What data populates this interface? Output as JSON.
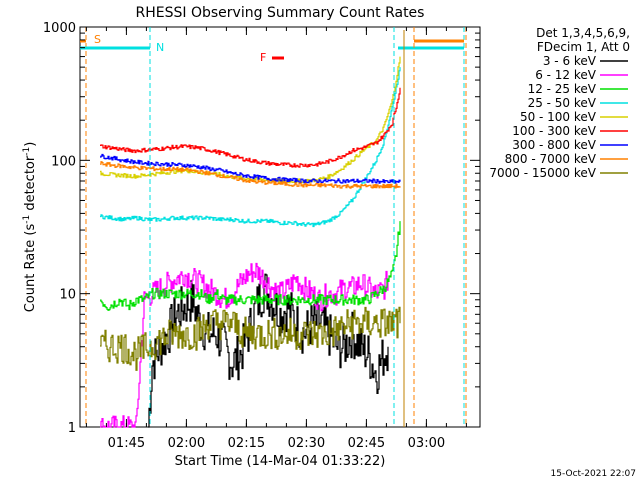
{
  "chart_data": {
    "type": "line",
    "title": "RHESSI Observing Summary Count Rates",
    "xlabel": "Start Time (14-Mar-04 01:33:22)",
    "ylabel_main": "Count Rate (s",
    "ylabel_sup1": "-1",
    "ylabel_mid": " detector",
    "ylabel_sup2": "-1",
    "ylabel_end": ")",
    "x_unit": "minutes since 01:33:22",
    "xlim": [
      0,
      100
    ],
    "ylim": [
      1,
      1000
    ],
    "yscale": "log",
    "x_ticks": [
      {
        "label": "01:45",
        "x": 11.6
      },
      {
        "label": "02:00",
        "x": 26.6
      },
      {
        "label": "02:15",
        "x": 41.6
      },
      {
        "label": "02:30",
        "x": 56.6
      },
      {
        "label": "02:45",
        "x": 71.6
      },
      {
        "label": "03:00",
        "x": 86.6
      }
    ],
    "y_ticks": [
      {
        "label": "1",
        "v": 1
      },
      {
        "label": "10",
        "v": 10
      },
      {
        "label": "100",
        "v": 100
      },
      {
        "label": "1000",
        "v": 1000
      }
    ],
    "legend": {
      "placement": "right",
      "header_line1": "Det 1,3,4,5,6,9,",
      "header_line2": "FDecim 1, Att 0",
      "entries": [
        {
          "label": "3 - 6 keV",
          "color": "#000000"
        },
        {
          "label": "6 - 12 keV",
          "color": "#ff00ff"
        },
        {
          "label": "12 - 25 keV",
          "color": "#00e000"
        },
        {
          "label": "25 - 50 keV",
          "color": "#00e0e0"
        },
        {
          "label": "50 - 100 keV",
          "color": "#d8d000"
        },
        {
          "label": "100 - 300 keV",
          "color": "#ff0000"
        },
        {
          "label": "300 - 800 keV",
          "color": "#0000ff"
        },
        {
          "label": "800 - 7000 keV",
          "color": "#ff8000"
        },
        {
          "label": "7000 - 15000 keV",
          "color": "#808000"
        }
      ]
    },
    "series": [
      {
        "name": "3 - 6 keV",
        "color": "#000000",
        "x": [
          17,
          18,
          19,
          20,
          22,
          24,
          26,
          28,
          30,
          32,
          34,
          36,
          38,
          40,
          42,
          44,
          46,
          48,
          50,
          52,
          54,
          56,
          58,
          60,
          62,
          64,
          66,
          68,
          70,
          72,
          73,
          74,
          75,
          76,
          77
        ],
        "y": [
          1,
          3,
          3.5,
          4,
          5,
          7,
          8,
          9,
          6,
          5,
          5,
          4,
          3,
          3.5,
          5,
          8,
          11,
          9,
          7,
          8,
          6,
          5,
          6,
          6,
          5,
          4,
          4,
          5,
          4,
          3.5,
          3,
          2.5,
          3,
          3.5,
          4
        ]
      },
      {
        "name": "6 - 12 keV",
        "color": "#ff00ff",
        "x": [
          5,
          7,
          8,
          10,
          12,
          14,
          16,
          18,
          20,
          22,
          24,
          26,
          28,
          30,
          32,
          34,
          36,
          38,
          40,
          42,
          44,
          46,
          48,
          50,
          52,
          54,
          56,
          58,
          60,
          62,
          64,
          66,
          68,
          70,
          72,
          74,
          76,
          77
        ],
        "y": [
          1,
          1,
          1,
          1,
          1,
          1,
          9,
          10,
          11,
          12,
          13,
          14,
          13,
          12,
          11,
          10,
          9,
          10,
          12,
          14,
          15,
          13,
          11,
          10,
          11,
          13,
          11,
          10,
          9,
          10,
          10,
          11,
          11,
          12,
          11,
          10,
          11,
          13
        ]
      },
      {
        "name": "12 - 25 keV",
        "color": "#00e000",
        "x": [
          5,
          7,
          10,
          12,
          14,
          16,
          18,
          20,
          22,
          24,
          26,
          28,
          30,
          32,
          34,
          36,
          38,
          40,
          42,
          44,
          46,
          48,
          50,
          52,
          54,
          56,
          58,
          60,
          62,
          64,
          66,
          68,
          70,
          72,
          74,
          76,
          78,
          79,
          80
        ],
        "y": [
          9,
          8,
          9,
          8,
          9,
          9,
          10,
          10,
          10,
          10,
          10,
          10,
          10,
          9,
          10,
          9,
          9,
          9,
          9,
          9,
          9,
          9,
          9,
          9,
          9,
          9,
          9,
          9,
          9,
          9,
          9,
          9,
          9,
          9,
          10,
          11,
          14,
          20,
          35
        ]
      },
      {
        "name": "25 - 50 keV",
        "color": "#00e0e0",
        "x": [
          5,
          8,
          11,
          14,
          17,
          20,
          23,
          26,
          29,
          32,
          35,
          38,
          41,
          44,
          47,
          50,
          53,
          56,
          59,
          62,
          65,
          68,
          71,
          74,
          76,
          78,
          79,
          80
        ],
        "y": [
          38,
          37,
          36,
          37,
          36,
          36,
          37,
          37,
          37,
          37,
          36,
          36,
          35,
          35,
          35,
          34,
          34,
          33,
          33,
          35,
          40,
          50,
          70,
          100,
          140,
          250,
          350,
          500
        ]
      },
      {
        "name": "50 - 100 keV",
        "color": "#d8d000",
        "x": [
          5,
          8,
          11,
          14,
          17,
          20,
          23,
          26,
          29,
          32,
          35,
          38,
          41,
          44,
          47,
          50,
          53,
          56,
          59,
          62,
          65,
          68,
          71,
          74,
          76,
          78,
          79,
          80
        ],
        "y": [
          80,
          78,
          77,
          76,
          78,
          80,
          82,
          84,
          82,
          80,
          78,
          75,
          73,
          72,
          71,
          70,
          70,
          70,
          71,
          75,
          85,
          100,
          120,
          140,
          180,
          280,
          400,
          600
        ]
      },
      {
        "name": "100 - 300 keV",
        "color": "#ff0000",
        "x": [
          5,
          8,
          11,
          14,
          17,
          20,
          23,
          26,
          29,
          32,
          35,
          38,
          41,
          44,
          47,
          50,
          53,
          56,
          59,
          62,
          65,
          68,
          71,
          74,
          76,
          78,
          79,
          80
        ],
        "y": [
          128,
          124,
          120,
          118,
          120,
          122,
          125,
          127,
          125,
          120,
          114,
          108,
          102,
          98,
          95,
          93,
          92,
          92,
          93,
          98,
          106,
          118,
          125,
          135,
          155,
          190,
          250,
          350
        ]
      },
      {
        "name": "300 - 800 keV",
        "color": "#0000ff",
        "x": [
          5,
          8,
          11,
          14,
          17,
          20,
          23,
          26,
          29,
          32,
          35,
          38,
          41,
          44,
          47,
          50,
          53,
          56,
          59,
          62,
          65,
          68,
          71,
          74,
          76,
          78,
          79,
          80
        ],
        "y": [
          108,
          104,
          100,
          97,
          95,
          94,
          93,
          92,
          90,
          87,
          84,
          80,
          77,
          75,
          73,
          72,
          71,
          70,
          70,
          70,
          70,
          70,
          70,
          70,
          69,
          69,
          69,
          69
        ]
      },
      {
        "name": "800 - 7000 keV",
        "color": "#ff8000",
        "x": [
          5,
          8,
          11,
          14,
          17,
          20,
          23,
          26,
          29,
          32,
          35,
          38,
          41,
          44,
          47,
          50,
          53,
          56,
          59,
          62,
          65,
          68,
          71,
          74,
          76,
          78,
          79,
          80
        ],
        "y": [
          95,
          92,
          90,
          88,
          87,
          86,
          86,
          85,
          83,
          80,
          77,
          74,
          71,
          69,
          68,
          67,
          66,
          65,
          65,
          65,
          64,
          64,
          64,
          64,
          64,
          64,
          64,
          64
        ]
      },
      {
        "name": "7000 - 15000 keV",
        "color": "#808000",
        "x": [
          5,
          8,
          11,
          14,
          17,
          20,
          23,
          26,
          29,
          32,
          35,
          38,
          41,
          44,
          47,
          50,
          53,
          56,
          59,
          62,
          65,
          68,
          71,
          74,
          76,
          78,
          79,
          80
        ],
        "y": [
          4,
          4,
          4,
          3.5,
          4,
          4.5,
          5,
          5,
          5,
          6,
          6,
          6,
          5,
          5,
          5,
          5,
          5,
          5,
          5,
          5,
          5.5,
          6,
          6,
          6,
          6,
          6,
          6,
          6
        ]
      }
    ],
    "annotations": [
      {
        "label": "S",
        "color": "#ff8000"
      },
      {
        "label": "N",
        "color": "#00e0e0"
      },
      {
        "label": "F",
        "color": "#ff0000"
      }
    ],
    "footer_date": "15-Oct-2021 22:07"
  }
}
